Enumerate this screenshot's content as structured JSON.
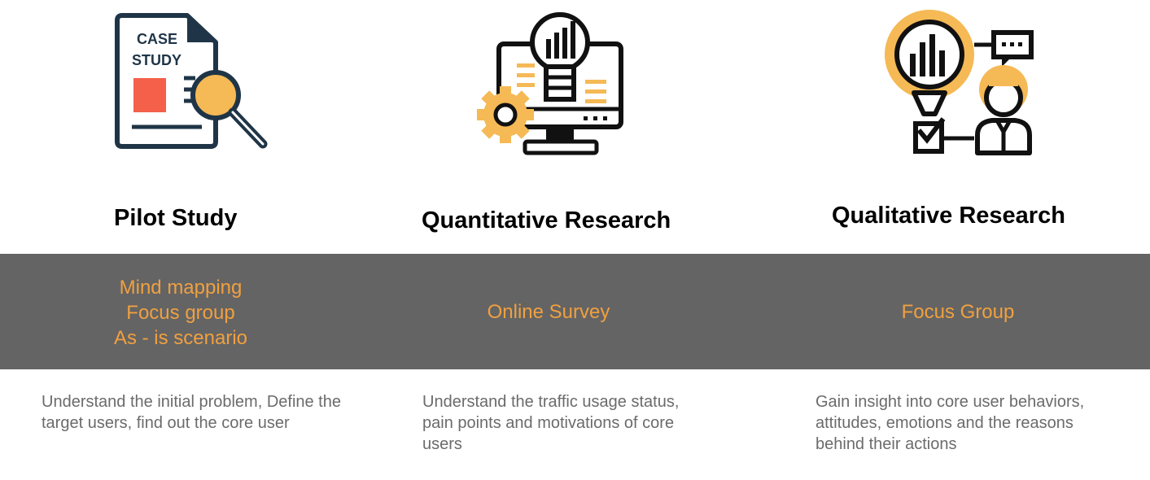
{
  "colors": {
    "band": "#646464",
    "accent": "#f0a040",
    "icon_navy": "#1f3547",
    "icon_orange": "#f5b955",
    "icon_red": "#f4604a",
    "desc_text": "#6b6b6b"
  },
  "columns": [
    {
      "icon": "case-study-document-magnifier-icon",
      "icon_text_line1": "CASE",
      "icon_text_line2": "STUDY",
      "title": "Pilot Study",
      "methods": [
        "Mind mapping",
        "Focus group",
        "As - is scenario"
      ],
      "description": "Understand the initial problem, Define the target users, find out the core user"
    },
    {
      "icon": "computer-lightbulb-gear-icon",
      "title": "Quantitative Research",
      "methods": [
        "Online Survey"
      ],
      "description": "Understand the traffic usage status, pain points and motivations of core users"
    },
    {
      "icon": "chart-consultant-chat-icon",
      "title": "Qualitative Research",
      "methods": [
        "Focus Group"
      ],
      "description": "Gain insight into core user behaviors, attitudes, emotions and the reasons behind their actions"
    }
  ]
}
